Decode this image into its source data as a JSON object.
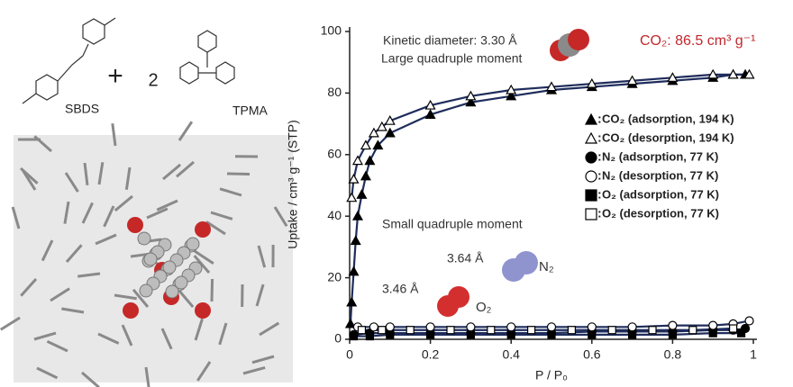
{
  "chart_data": {
    "type": "scatter-line",
    "xlabel": "P / P₀",
    "ylabel": "Uptake / cm³ g⁻¹ (STP)",
    "xlim": [
      0,
      1
    ],
    "xticks": [
      0,
      0.2,
      0.4,
      0.6,
      0.8,
      1
    ],
    "ylim": [
      0,
      100
    ],
    "yticks": [
      0,
      20,
      40,
      60,
      80,
      100
    ],
    "line_color": "#1f2d5c",
    "annotations": [
      {
        "text": "Kinetic diameter: 3.30 Å",
        "color": "#333333"
      },
      {
        "text": "Large quadruple moment",
        "color": "#333333"
      },
      {
        "text": "CO₂: 86.5 cm³ g⁻¹",
        "color": "#c0272d"
      },
      {
        "text": "Small quadruple moment",
        "color": "#333333"
      },
      {
        "text": "3.64 Å",
        "color": "#333333"
      },
      {
        "text": "N₂",
        "color": "#333333"
      },
      {
        "text": "3.46 Å",
        "color": "#333333"
      },
      {
        "text": "O₂",
        "color": "#333333"
      }
    ],
    "series": [
      {
        "name": "CO₂ (adsorption, 194 K)",
        "color": "#000000",
        "marker": "triangle",
        "filled": true,
        "x": [
          0.002,
          0.005,
          0.01,
          0.015,
          0.02,
          0.03,
          0.04,
          0.05,
          0.07,
          0.1,
          0.2,
          0.3,
          0.4,
          0.5,
          0.6,
          0.7,
          0.8,
          0.9,
          0.95,
          0.98
        ],
        "values": [
          5,
          12,
          22,
          32,
          40,
          47,
          53,
          58,
          63,
          67,
          73,
          77,
          79,
          81,
          82,
          83,
          84,
          85,
          86,
          86
        ]
      },
      {
        "name": "CO₂ (desorption, 194 K)",
        "color": "#000000",
        "marker": "triangle",
        "filled": false,
        "x": [
          0.005,
          0.01,
          0.02,
          0.04,
          0.06,
          0.08,
          0.1,
          0.2,
          0.3,
          0.4,
          0.5,
          0.6,
          0.7,
          0.8,
          0.9,
          0.95,
          0.99
        ],
        "values": [
          46,
          52,
          58,
          63,
          67,
          69,
          71,
          76,
          79,
          81,
          82,
          83,
          84,
          85,
          86,
          86,
          86
        ]
      },
      {
        "name": "N₂ (adsorption, 77 K)",
        "color": "#000000",
        "marker": "circle",
        "filled": true,
        "x": [
          0.01,
          0.05,
          0.1,
          0.2,
          0.3,
          0.4,
          0.5,
          0.6,
          0.7,
          0.8,
          0.9,
          0.95,
          0.98
        ],
        "values": [
          1.5,
          2,
          2,
          2,
          2,
          2,
          2,
          2.5,
          2.5,
          2.5,
          3,
          3,
          3.5
        ]
      },
      {
        "name": "N₂ (desorption, 77 K)",
        "color": "#000000",
        "marker": "circle",
        "filled": false,
        "x": [
          0.02,
          0.06,
          0.1,
          0.2,
          0.3,
          0.4,
          0.5,
          0.6,
          0.7,
          0.8,
          0.9,
          0.95,
          0.99
        ],
        "values": [
          4,
          4,
          4,
          4,
          4,
          4,
          4,
          4,
          4,
          4.5,
          4.5,
          5,
          6
        ]
      },
      {
        "name": "O₂ (adsorption, 77 K)",
        "color": "#000000",
        "marker": "square",
        "filled": true,
        "x": [
          0.01,
          0.05,
          0.1,
          0.2,
          0.3,
          0.4,
          0.5,
          0.6,
          0.7,
          0.8,
          0.9,
          0.97
        ],
        "values": [
          1,
          1,
          1.5,
          1.5,
          1.5,
          1.5,
          1.5,
          1.5,
          1.5,
          1.5,
          2,
          2
        ]
      },
      {
        "name": "O₂ (desorption, 77 K)",
        "color": "#000000",
        "marker": "square",
        "filled": false,
        "x": [
          0.03,
          0.08,
          0.15,
          0.25,
          0.35,
          0.45,
          0.55,
          0.65,
          0.75,
          0.85,
          0.95
        ],
        "values": [
          3,
          3,
          3,
          3,
          3,
          3,
          3,
          3,
          3,
          3,
          3.5
        ]
      }
    ]
  },
  "structure_labels": {
    "left_molecule": "SBDS",
    "plus": "+",
    "count": "2",
    "right_molecule": "TPMA"
  }
}
